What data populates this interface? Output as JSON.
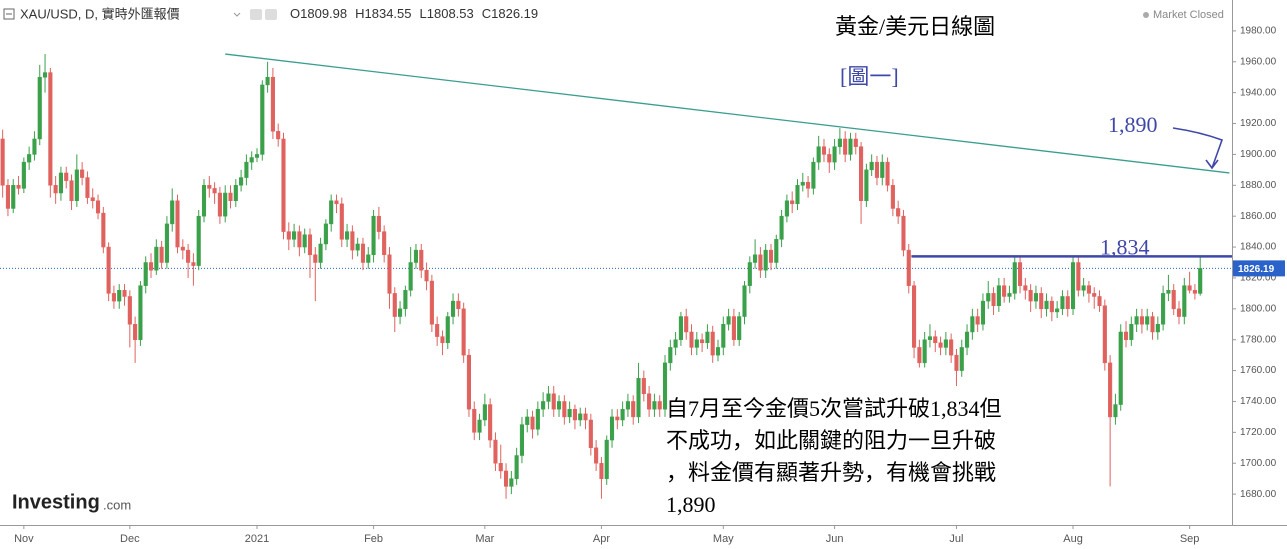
{
  "chart_data": {
    "type": "candlestick",
    "title": "黃金/美元日線圖",
    "subtitle": "[圖一]",
    "symbol": "XAU/USD, D, 實時外匯報價",
    "ohlc": [
      {
        "label": "O",
        "value": 1809.98
      },
      {
        "label": "H",
        "value": 1834.55
      },
      {
        "label": "L",
        "value": 1808.53
      },
      {
        "label": "C",
        "value": 1826.19
      }
    ],
    "status": "Market Closed",
    "logo": "Investing",
    "logo_suffix": ".com",
    "last_price": 1826.19,
    "up_color": "#3aa04a",
    "down_color": "#e0625e",
    "last_price_color": "#2962c8",
    "xlim": [
      -0.5,
      232
    ],
    "ylim": [
      1660,
      2000
    ],
    "xticks": [
      {
        "value": 4,
        "label": "Nov"
      },
      {
        "value": 24,
        "label": "Dec"
      },
      {
        "value": 48,
        "label": "2021"
      },
      {
        "value": 70,
        "label": "Feb"
      },
      {
        "value": 91,
        "label": "Mar"
      },
      {
        "value": 113,
        "label": "Apr"
      },
      {
        "value": 136,
        "label": "May"
      },
      {
        "value": 157,
        "label": "Jun"
      },
      {
        "value": 180,
        "label": "Jul"
      },
      {
        "value": 202,
        "label": "Aug"
      },
      {
        "value": 224,
        "label": "Sep"
      }
    ],
    "yticks": [
      {
        "value": 1680,
        "label": "1680.00"
      },
      {
        "value": 1700,
        "label": "1700.00"
      },
      {
        "value": 1720,
        "label": "1720.00"
      },
      {
        "value": 1740,
        "label": "1740.00"
      },
      {
        "value": 1760,
        "label": "1760.00"
      },
      {
        "value": 1780,
        "label": "1780.00"
      },
      {
        "value": 1800,
        "label": "1800.00"
      },
      {
        "value": 1820,
        "label": "1820.00"
      },
      {
        "value": 1840,
        "label": "1840.00"
      },
      {
        "value": 1860,
        "label": "1860.00"
      },
      {
        "value": 1880,
        "label": "1880.00"
      },
      {
        "value": 1900,
        "label": "1900.00"
      },
      {
        "value": 1920,
        "label": "1920.00"
      },
      {
        "value": 1940,
        "label": "1940.00"
      },
      {
        "value": 1960,
        "label": "1960.00"
      },
      {
        "value": 1980,
        "label": "1980.00"
      }
    ],
    "trendline": {
      "color": "#3a9e8f",
      "x": [
        42,
        231.5
      ],
      "y": [
        1965,
        1888
      ]
    },
    "resistance": {
      "color": "#3f48a8",
      "value": 1834,
      "label": "1,834",
      "x": [
        171.5,
        232
      ]
    },
    "target": {
      "value": 1890,
      "label": "1,890",
      "color": "#3f48a8"
    },
    "annotation_lines": [
      "自7月至今金價5次嘗試升破1,834但",
      "不成功，如此關鍵的阻力一旦升破",
      "，料金價有顯著升勢，有機會挑戰",
      "1,890"
    ],
    "candles": [
      [
        1910,
        1916,
        1872,
        1880
      ],
      [
        1880,
        1884,
        1860,
        1865
      ],
      [
        1865,
        1884,
        1862,
        1880
      ],
      [
        1880,
        1886,
        1874,
        1878
      ],
      [
        1878,
        1898,
        1875,
        1895
      ],
      [
        1895,
        1905,
        1890,
        1900
      ],
      [
        1900,
        1915,
        1896,
        1910
      ],
      [
        1910,
        1958,
        1906,
        1950
      ],
      [
        1950,
        1965,
        1940,
        1953
      ],
      [
        1953,
        1956,
        1872,
        1880
      ],
      [
        1880,
        1886,
        1868,
        1875
      ],
      [
        1875,
        1892,
        1870,
        1888
      ],
      [
        1888,
        1892,
        1878,
        1883
      ],
      [
        1883,
        1887,
        1864,
        1870
      ],
      [
        1870,
        1900,
        1866,
        1890
      ],
      [
        1890,
        1895,
        1880,
        1885
      ],
      [
        1885,
        1889,
        1868,
        1872
      ],
      [
        1872,
        1878,
        1865,
        1870
      ],
      [
        1870,
        1874,
        1858,
        1862
      ],
      [
        1862,
        1866,
        1836,
        1840
      ],
      [
        1840,
        1843,
        1805,
        1810
      ],
      [
        1810,
        1815,
        1800,
        1805
      ],
      [
        1805,
        1816,
        1800,
        1812
      ],
      [
        1812,
        1816,
        1802,
        1808
      ],
      [
        1808,
        1812,
        1775,
        1790
      ],
      [
        1790,
        1795,
        1765,
        1780
      ],
      [
        1780,
        1818,
        1776,
        1815
      ],
      [
        1815,
        1834,
        1810,
        1830
      ],
      [
        1830,
        1836,
        1820,
        1825
      ],
      [
        1825,
        1845,
        1822,
        1840
      ],
      [
        1840,
        1844,
        1826,
        1830
      ],
      [
        1830,
        1860,
        1826,
        1855
      ],
      [
        1855,
        1878,
        1850,
        1870
      ],
      [
        1870,
        1874,
        1836,
        1840
      ],
      [
        1840,
        1845,
        1832,
        1838
      ],
      [
        1838,
        1842,
        1820,
        1830
      ],
      [
        1830,
        1836,
        1815,
        1828
      ],
      [
        1828,
        1864,
        1825,
        1860
      ],
      [
        1860,
        1884,
        1856,
        1880
      ],
      [
        1880,
        1886,
        1872,
        1878
      ],
      [
        1878,
        1882,
        1868,
        1875
      ],
      [
        1875,
        1879,
        1855,
        1860
      ],
      [
        1860,
        1880,
        1856,
        1875
      ],
      [
        1875,
        1880,
        1865,
        1870
      ],
      [
        1870,
        1884,
        1866,
        1880
      ],
      [
        1880,
        1890,
        1876,
        1885
      ],
      [
        1885,
        1900,
        1880,
        1895
      ],
      [
        1895,
        1902,
        1890,
        1898
      ],
      [
        1898,
        1904,
        1895,
        1900
      ],
      [
        1900,
        1948,
        1896,
        1945
      ],
      [
        1945,
        1960,
        1940,
        1950
      ],
      [
        1950,
        1956,
        1910,
        1915
      ],
      [
        1915,
        1920,
        1905,
        1910
      ],
      [
        1910,
        1914,
        1845,
        1850
      ],
      [
        1850,
        1856,
        1838,
        1845
      ],
      [
        1845,
        1855,
        1840,
        1850
      ],
      [
        1850,
        1854,
        1834,
        1840
      ],
      [
        1840,
        1852,
        1836,
        1848
      ],
      [
        1848,
        1852,
        1820,
        1835
      ],
      [
        1835,
        1840,
        1805,
        1830
      ],
      [
        1830,
        1846,
        1826,
        1842
      ],
      [
        1842,
        1858,
        1838,
        1855
      ],
      [
        1855,
        1874,
        1850,
        1870
      ],
      [
        1870,
        1874,
        1862,
        1868
      ],
      [
        1868,
        1872,
        1840,
        1845
      ],
      [
        1845,
        1855,
        1840,
        1850
      ],
      [
        1850,
        1854,
        1832,
        1838
      ],
      [
        1838,
        1846,
        1834,
        1842
      ],
      [
        1842,
        1846,
        1825,
        1830
      ],
      [
        1830,
        1840,
        1826,
        1835
      ],
      [
        1835,
        1864,
        1830,
        1860
      ],
      [
        1860,
        1866,
        1845,
        1850
      ],
      [
        1850,
        1854,
        1830,
        1835
      ],
      [
        1835,
        1840,
        1800,
        1810
      ],
      [
        1810,
        1814,
        1785,
        1795
      ],
      [
        1795,
        1805,
        1790,
        1800
      ],
      [
        1800,
        1815,
        1795,
        1812
      ],
      [
        1812,
        1840,
        1808,
        1830
      ],
      [
        1830,
        1842,
        1826,
        1838
      ],
      [
        1838,
        1842,
        1820,
        1825
      ],
      [
        1825,
        1830,
        1812,
        1818
      ],
      [
        1818,
        1822,
        1785,
        1790
      ],
      [
        1790,
        1795,
        1776,
        1782
      ],
      [
        1782,
        1786,
        1770,
        1778
      ],
      [
        1778,
        1798,
        1774,
        1795
      ],
      [
        1795,
        1810,
        1790,
        1805
      ],
      [
        1805,
        1810,
        1795,
        1800
      ],
      [
        1800,
        1804,
        1765,
        1770
      ],
      [
        1770,
        1774,
        1730,
        1735
      ],
      [
        1735,
        1740,
        1715,
        1720
      ],
      [
        1720,
        1732,
        1715,
        1728
      ],
      [
        1728,
        1745,
        1724,
        1738
      ],
      [
        1738,
        1742,
        1710,
        1715
      ],
      [
        1715,
        1720,
        1695,
        1700
      ],
      [
        1700,
        1712,
        1690,
        1695
      ],
      [
        1695,
        1700,
        1677,
        1685
      ],
      [
        1685,
        1695,
        1680,
        1690
      ],
      [
        1690,
        1710,
        1686,
        1705
      ],
      [
        1705,
        1730,
        1700,
        1725
      ],
      [
        1725,
        1735,
        1720,
        1730
      ],
      [
        1730,
        1734,
        1716,
        1722
      ],
      [
        1722,
        1740,
        1718,
        1735
      ],
      [
        1735,
        1746,
        1730,
        1740
      ],
      [
        1740,
        1750,
        1735,
        1745
      ],
      [
        1745,
        1750,
        1730,
        1735
      ],
      [
        1735,
        1744,
        1730,
        1740
      ],
      [
        1740,
        1744,
        1725,
        1730
      ],
      [
        1730,
        1740,
        1726,
        1735
      ],
      [
        1735,
        1738,
        1722,
        1728
      ],
      [
        1728,
        1736,
        1724,
        1732
      ],
      [
        1732,
        1736,
        1722,
        1728
      ],
      [
        1728,
        1732,
        1705,
        1710
      ],
      [
        1710,
        1715,
        1695,
        1700
      ],
      [
        1700,
        1704,
        1677,
        1690
      ],
      [
        1690,
        1718,
        1686,
        1715
      ],
      [
        1715,
        1735,
        1710,
        1730
      ],
      [
        1730,
        1735,
        1722,
        1728
      ],
      [
        1728,
        1740,
        1724,
        1735
      ],
      [
        1735,
        1745,
        1730,
        1740
      ],
      [
        1740,
        1744,
        1725,
        1730
      ],
      [
        1730,
        1765,
        1726,
        1755
      ],
      [
        1755,
        1760,
        1740,
        1745
      ],
      [
        1745,
        1750,
        1730,
        1735
      ],
      [
        1735,
        1745,
        1730,
        1740
      ],
      [
        1740,
        1744,
        1730,
        1735
      ],
      [
        1735,
        1770,
        1730,
        1765
      ],
      [
        1765,
        1780,
        1760,
        1775
      ],
      [
        1775,
        1785,
        1770,
        1780
      ],
      [
        1780,
        1798,
        1776,
        1795
      ],
      [
        1795,
        1800,
        1780,
        1785
      ],
      [
        1785,
        1790,
        1770,
        1775
      ],
      [
        1775,
        1785,
        1770,
        1780
      ],
      [
        1780,
        1784,
        1772,
        1778
      ],
      [
        1778,
        1790,
        1774,
        1785
      ],
      [
        1785,
        1789,
        1765,
        1770
      ],
      [
        1770,
        1780,
        1766,
        1775
      ],
      [
        1775,
        1795,
        1770,
        1790
      ],
      [
        1790,
        1800,
        1786,
        1795
      ],
      [
        1795,
        1800,
        1776,
        1780
      ],
      [
        1780,
        1798,
        1776,
        1795
      ],
      [
        1795,
        1818,
        1790,
        1815
      ],
      [
        1815,
        1834,
        1810,
        1830
      ],
      [
        1830,
        1845,
        1826,
        1835
      ],
      [
        1835,
        1840,
        1820,
        1825
      ],
      [
        1825,
        1842,
        1820,
        1838
      ],
      [
        1838,
        1842,
        1825,
        1830
      ],
      [
        1830,
        1848,
        1826,
        1845
      ],
      [
        1845,
        1864,
        1840,
        1860
      ],
      [
        1860,
        1874,
        1856,
        1870
      ],
      [
        1870,
        1876,
        1862,
        1868
      ],
      [
        1868,
        1884,
        1864,
        1880
      ],
      [
        1880,
        1888,
        1876,
        1882
      ],
      [
        1882,
        1886,
        1872,
        1878
      ],
      [
        1878,
        1898,
        1874,
        1895
      ],
      [
        1895,
        1912,
        1890,
        1905
      ],
      [
        1905,
        1910,
        1895,
        1900
      ],
      [
        1900,
        1904,
        1888,
        1895
      ],
      [
        1895,
        1910,
        1890,
        1905
      ],
      [
        1905,
        1917,
        1900,
        1910
      ],
      [
        1910,
        1915,
        1895,
        1900
      ],
      [
        1900,
        1914,
        1896,
        1910
      ],
      [
        1910,
        1914,
        1900,
        1905
      ],
      [
        1905,
        1908,
        1855,
        1870
      ],
      [
        1870,
        1894,
        1866,
        1890
      ],
      [
        1890,
        1900,
        1886,
        1895
      ],
      [
        1895,
        1899,
        1880,
        1885
      ],
      [
        1885,
        1900,
        1880,
        1895
      ],
      [
        1895,
        1898,
        1876,
        1880
      ],
      [
        1880,
        1884,
        1860,
        1865
      ],
      [
        1865,
        1870,
        1855,
        1860
      ],
      [
        1860,
        1864,
        1834,
        1838
      ],
      [
        1838,
        1842,
        1810,
        1815
      ],
      [
        1815,
        1818,
        1768,
        1775
      ],
      [
        1775,
        1780,
        1762,
        1765
      ],
      [
        1765,
        1785,
        1762,
        1780
      ],
      [
        1780,
        1790,
        1775,
        1782
      ],
      [
        1782,
        1786,
        1772,
        1778
      ],
      [
        1778,
        1782,
        1770,
        1775
      ],
      [
        1775,
        1785,
        1770,
        1780
      ],
      [
        1780,
        1784,
        1765,
        1770
      ],
      [
        1770,
        1774,
        1750,
        1760
      ],
      [
        1760,
        1780,
        1756,
        1775
      ],
      [
        1775,
        1790,
        1770,
        1785
      ],
      [
        1785,
        1800,
        1780,
        1795
      ],
      [
        1795,
        1800,
        1785,
        1790
      ],
      [
        1790,
        1810,
        1786,
        1805
      ],
      [
        1805,
        1818,
        1800,
        1810
      ],
      [
        1810,
        1814,
        1796,
        1802
      ],
      [
        1802,
        1820,
        1798,
        1815
      ],
      [
        1815,
        1820,
        1804,
        1808
      ],
      [
        1808,
        1815,
        1804,
        1810
      ],
      [
        1810,
        1834,
        1806,
        1830
      ],
      [
        1830,
        1834,
        1810,
        1815
      ],
      [
        1815,
        1820,
        1806,
        1812
      ],
      [
        1812,
        1816,
        1798,
        1805
      ],
      [
        1805,
        1815,
        1800,
        1810
      ],
      [
        1810,
        1814,
        1794,
        1800
      ],
      [
        1800,
        1810,
        1795,
        1805
      ],
      [
        1805,
        1808,
        1792,
        1798
      ],
      [
        1798,
        1805,
        1794,
        1800
      ],
      [
        1800,
        1812,
        1796,
        1808
      ],
      [
        1808,
        1812,
        1795,
        1800
      ],
      [
        1800,
        1834,
        1796,
        1830
      ],
      [
        1830,
        1834,
        1808,
        1812
      ],
      [
        1812,
        1820,
        1808,
        1815
      ],
      [
        1815,
        1818,
        1804,
        1810
      ],
      [
        1810,
        1814,
        1800,
        1808
      ],
      [
        1808,
        1812,
        1798,
        1802
      ],
      [
        1802,
        1806,
        1760,
        1765
      ],
      [
        1765,
        1770,
        1685,
        1730
      ],
      [
        1730,
        1745,
        1725,
        1738
      ],
      [
        1738,
        1790,
        1734,
        1785
      ],
      [
        1785,
        1792,
        1775,
        1780
      ],
      [
        1780,
        1795,
        1776,
        1790
      ],
      [
        1790,
        1800,
        1785,
        1795
      ],
      [
        1795,
        1800,
        1784,
        1790
      ],
      [
        1790,
        1800,
        1786,
        1795
      ],
      [
        1795,
        1798,
        1780,
        1785
      ],
      [
        1785,
        1795,
        1780,
        1790
      ],
      [
        1790,
        1815,
        1786,
        1810
      ],
      [
        1810,
        1822,
        1805,
        1812
      ],
      [
        1812,
        1816,
        1796,
        1800
      ],
      [
        1800,
        1805,
        1790,
        1795
      ],
      [
        1795,
        1820,
        1790,
        1815
      ],
      [
        1815,
        1824,
        1810,
        1812
      ],
      [
        1812,
        1816,
        1806,
        1810
      ],
      [
        1809.98,
        1834.55,
        1808.53,
        1826.19
      ]
    ]
  }
}
